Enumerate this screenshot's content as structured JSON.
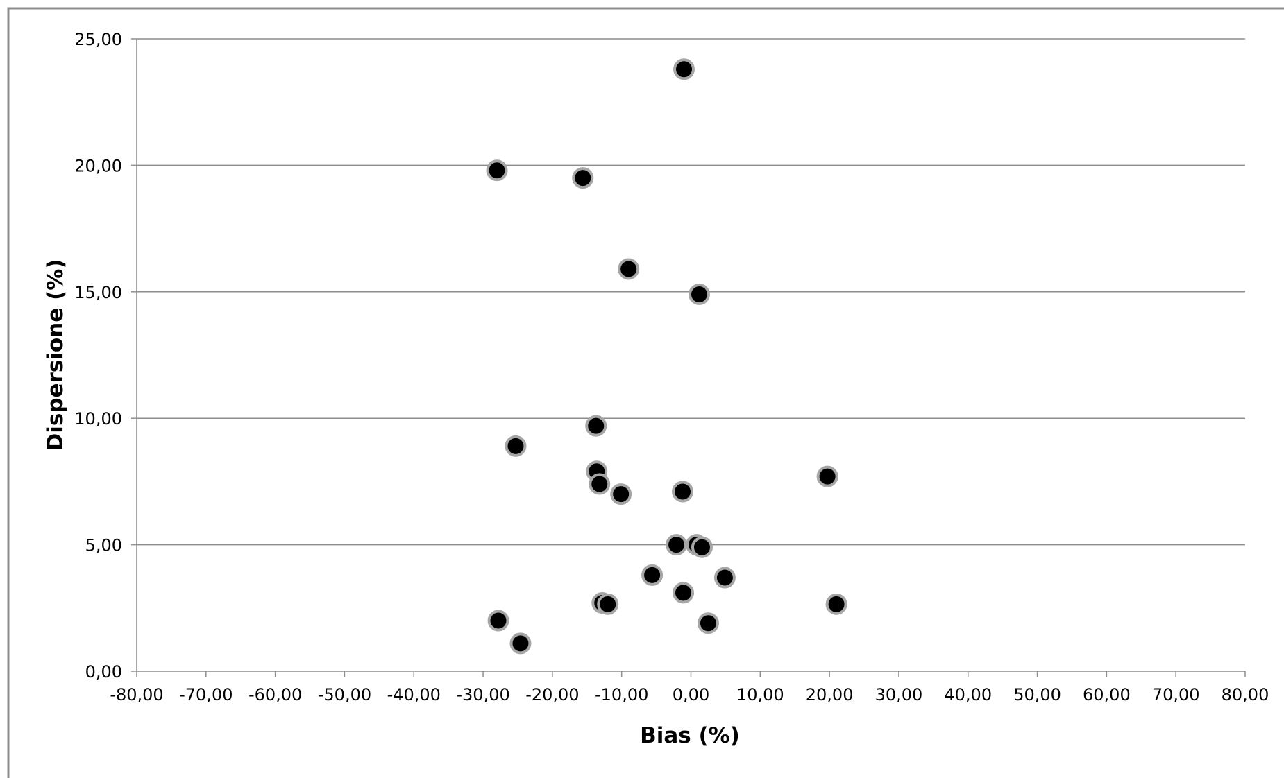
{
  "chart_data": {
    "type": "scatter",
    "xlabel": "Bias (%)",
    "ylabel": "Dispersione (%)",
    "xlim": [
      -80,
      80
    ],
    "ylim": [
      0,
      25
    ],
    "x_ticks": [
      "-80,00",
      "-70,00",
      "-60,00",
      "-50,00",
      "-40,00",
      "-30,00",
      "-20,00",
      "-10,00",
      "0,00",
      "10,00",
      "20,00",
      "30,00",
      "40,00",
      "50,00",
      "60,00",
      "70,00",
      "80,00"
    ],
    "y_ticks": [
      "0,00",
      "5,00",
      "10,00",
      "15,00",
      "20,00",
      "25,00"
    ],
    "grid": "horizontal",
    "legend": "none",
    "marker_color": "#000000",
    "marker_edge_color": "#a6a6a6",
    "points": [
      {
        "x": -1.0,
        "y": 23.8
      },
      {
        "x": -28.0,
        "y": 19.8
      },
      {
        "x": -15.6,
        "y": 19.5
      },
      {
        "x": -9.0,
        "y": 15.9
      },
      {
        "x": 1.2,
        "y": 14.9
      },
      {
        "x": -13.7,
        "y": 9.7
      },
      {
        "x": -25.3,
        "y": 8.9
      },
      {
        "x": -13.6,
        "y": 7.9
      },
      {
        "x": -13.2,
        "y": 7.4
      },
      {
        "x": -10.1,
        "y": 7.0
      },
      {
        "x": -1.2,
        "y": 7.1
      },
      {
        "x": 19.7,
        "y": 7.7
      },
      {
        "x": -2.1,
        "y": 5.0
      },
      {
        "x": 0.8,
        "y": 5.0
      },
      {
        "x": 1.6,
        "y": 4.9
      },
      {
        "x": -5.6,
        "y": 3.8
      },
      {
        "x": 4.9,
        "y": 3.7
      },
      {
        "x": -1.1,
        "y": 3.1
      },
      {
        "x": -12.8,
        "y": 2.7
      },
      {
        "x": -12.0,
        "y": 2.65
      },
      {
        "x": 21.0,
        "y": 2.65
      },
      {
        "x": -27.8,
        "y": 2.0
      },
      {
        "x": 2.5,
        "y": 1.9
      },
      {
        "x": -24.6,
        "y": 1.1
      }
    ]
  }
}
